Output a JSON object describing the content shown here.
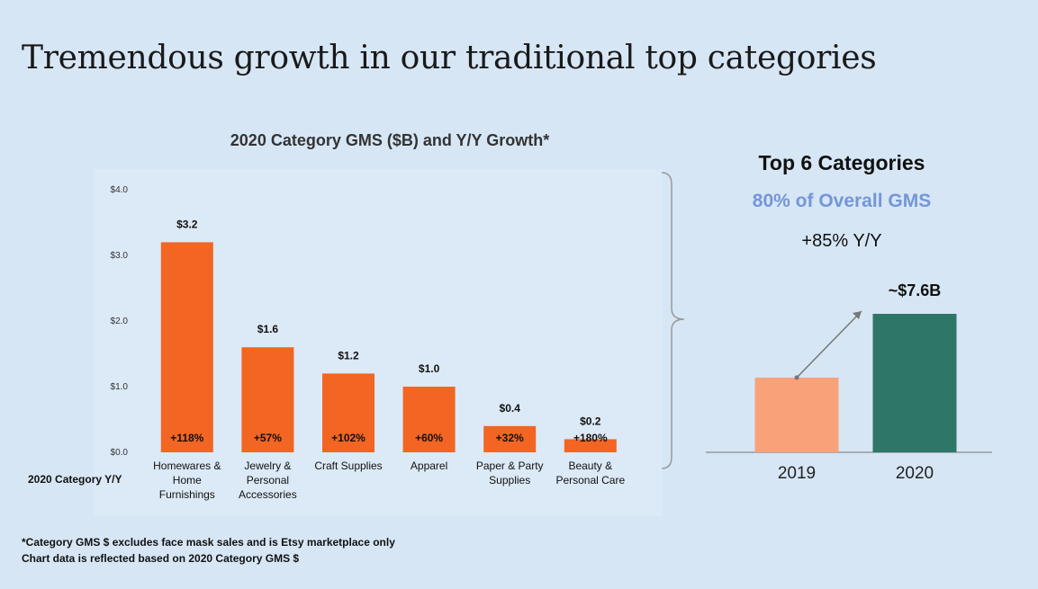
{
  "title": "Tremendous growth in our traditional top categories",
  "colors": {
    "bar": "#f26522",
    "bar_2019": "#f9a27a",
    "bar_2020": "#2e7768",
    "accent_text": "#7596d6",
    "background": "#d6e6f5"
  },
  "chart_data": [
    {
      "type": "bar",
      "title": "2020 Category GMS ($B) and Y/Y Growth*",
      "categories": [
        "Homewares & Home Furnishings",
        "Jewelry & Personal Accessories",
        "Craft Supplies",
        "Apparel",
        "Paper & Party Supplies",
        "Beauty & Personal Care"
      ],
      "category_lines": [
        [
          "Homewares &",
          "Home",
          "Furnishings"
        ],
        [
          "Jewelry &",
          "Personal",
          "Accessories"
        ],
        [
          "Craft Supplies"
        ],
        [
          "Apparel"
        ],
        [
          "Paper & Party",
          "Supplies"
        ],
        [
          "Beauty &",
          "Personal Care"
        ]
      ],
      "values": [
        3.2,
        1.6,
        1.2,
        1.0,
        0.4,
        0.2
      ],
      "value_labels": [
        "$3.2",
        "$1.6",
        "$1.2",
        "$1.0",
        "$0.4",
        "$0.2"
      ],
      "growth_row_label": "2020 Category Y/Y",
      "growth_labels": [
        "+118%",
        "+57%",
        "+102%",
        "+60%",
        "+32%",
        "+180%"
      ],
      "ylim": [
        0,
        4
      ],
      "y_ticks": [
        0,
        1,
        2,
        3,
        4
      ],
      "y_tick_labels": [
        "$0.0",
        "$1.0",
        "$2.0",
        "$3.0",
        "$4.0"
      ],
      "grid": false
    },
    {
      "type": "bar",
      "categories": [
        "2019",
        "2020"
      ],
      "values": [
        4.1,
        7.6
      ],
      "value_labels": [
        "",
        "~$7.6B"
      ],
      "title": "Top 6 Categories",
      "subtitle": "80% of Overall GMS",
      "annotation": "+85% Y/Y",
      "grid": false
    }
  ],
  "footnotes": [
    "*Category GMS $ excludes face mask sales and is Etsy marketplace only",
    "Chart data is reflected based on 2020 Category GMS $"
  ]
}
